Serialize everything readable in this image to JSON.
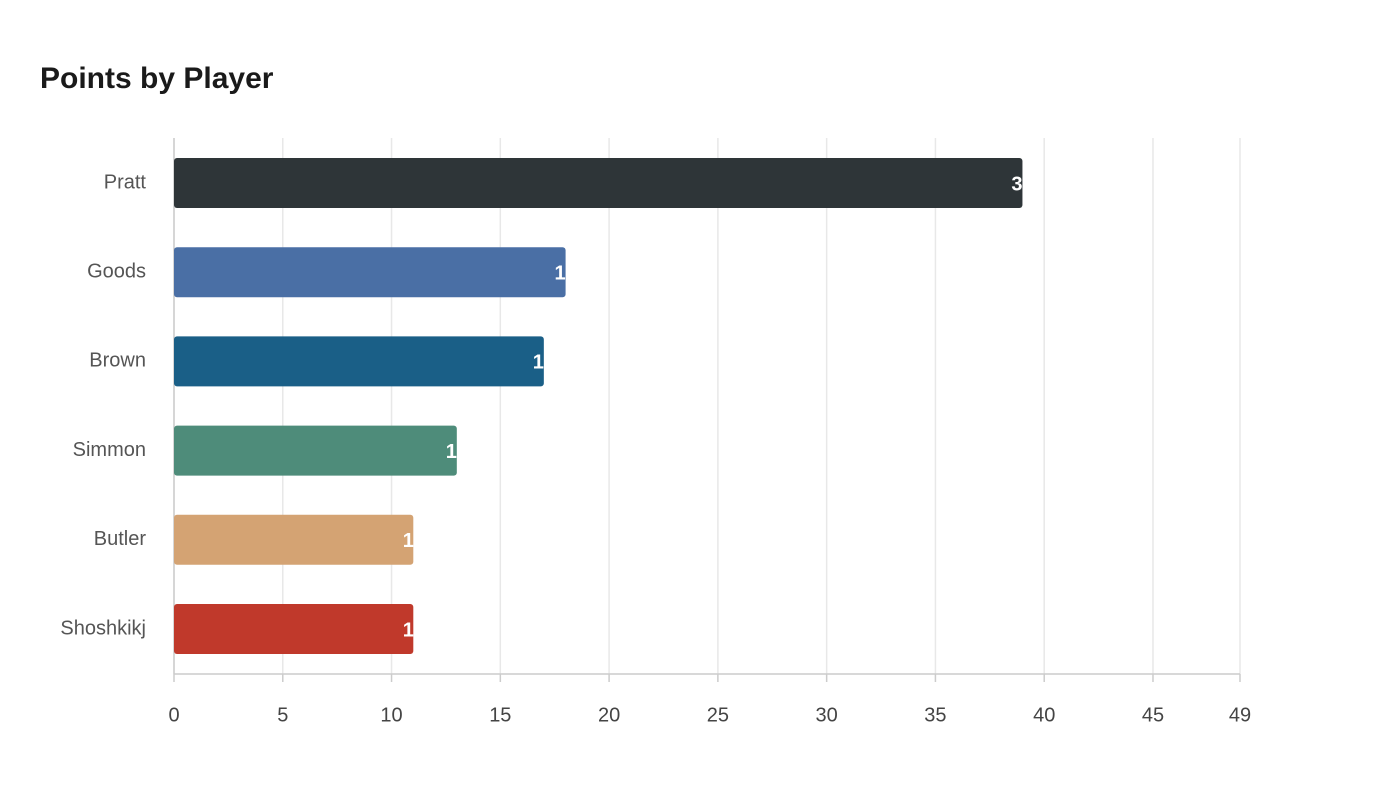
{
  "chart_data": {
    "type": "hbar",
    "title": "Points by Player",
    "categories": [
      "Pratt",
      "Goods",
      "Brown",
      "Simmon",
      "Butler",
      "Shoshkikj"
    ],
    "values": [
      39,
      18,
      17,
      13,
      11,
      11
    ],
    "colors": [
      "#2e3538",
      "#4a6fa5",
      "#1a5f87",
      "#4e8c7a",
      "#d4a373",
      "#c0392b"
    ],
    "xlim": [
      0,
      49
    ],
    "xticks": [
      0,
      5,
      10,
      15,
      20,
      25,
      30,
      35,
      40,
      45,
      49
    ],
    "grid": true
  }
}
